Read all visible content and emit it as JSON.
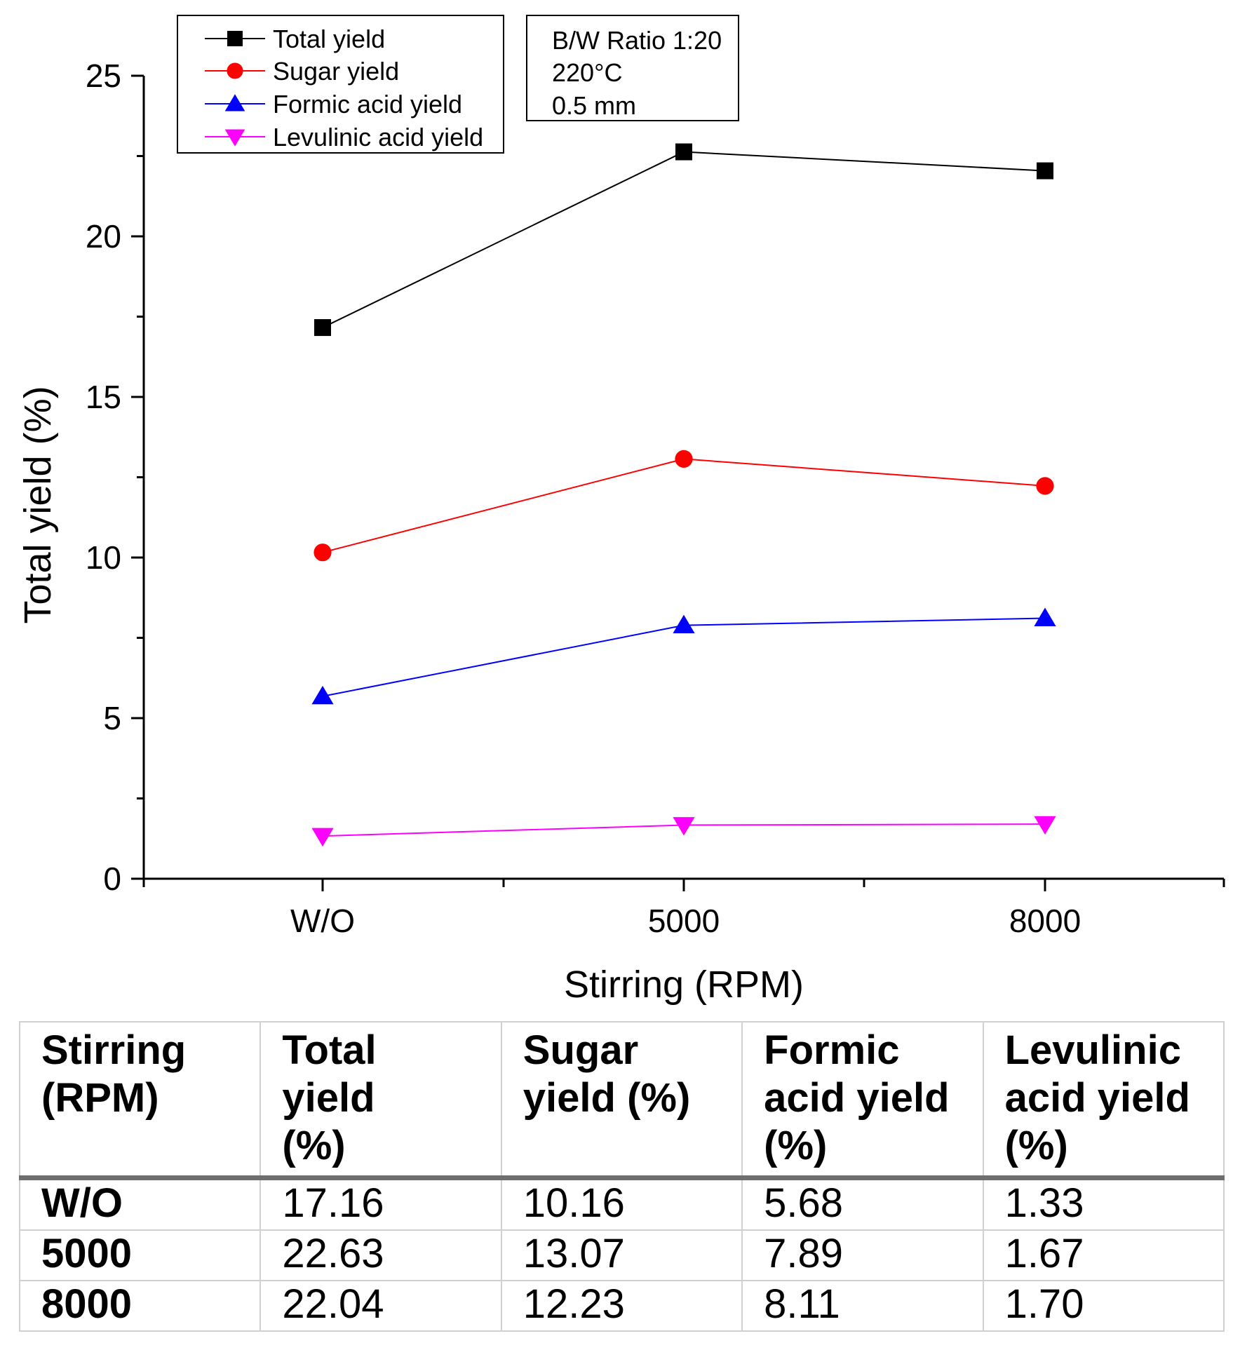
{
  "chart_data": {
    "type": "line",
    "xlabel": "Stirring (RPM)",
    "ylabel": "Total yield (%)",
    "categories": [
      "W/O",
      "5000",
      "8000"
    ],
    "ylim": [
      0,
      25
    ],
    "yticks": [
      "0",
      "5",
      "10",
      "15",
      "20",
      "25"
    ],
    "series": [
      {
        "name": "Total yield",
        "values": [
          17.16,
          22.63,
          22.04
        ],
        "color": "#000000",
        "marker": "square"
      },
      {
        "name": "Sugar yield",
        "values": [
          10.16,
          13.07,
          12.23
        ],
        "color": "#ff0000",
        "marker": "circle"
      },
      {
        "name": "Formic acid yield",
        "values": [
          5.68,
          7.89,
          8.11
        ],
        "color": "#0000ff",
        "marker": "triangle-up"
      },
      {
        "name": "Levulinic acid yield",
        "values": [
          1.33,
          1.67,
          1.7
        ],
        "color": "#ff00ff",
        "marker": "triangle-down"
      }
    ],
    "legend_position": "top-left",
    "annotation": [
      "B/W Ratio 1:20",
      "220°C",
      "0.5 mm"
    ]
  },
  "table": {
    "headers": [
      [
        "Stirring",
        "(RPM)"
      ],
      [
        "Total",
        "yield",
        "(%)"
      ],
      [
        "Sugar",
        "yield (%)"
      ],
      [
        "Formic",
        "acid yield",
        "(%)"
      ],
      [
        "Levulinic",
        "acid yield",
        "(%)"
      ]
    ],
    "rows": [
      [
        "W/O",
        "17.16",
        "10.16",
        "5.68",
        "1.33"
      ],
      [
        "5000",
        "22.63",
        "13.07",
        "7.89",
        "1.67"
      ],
      [
        "8000",
        "22.04",
        "12.23",
        "8.11",
        "1.70"
      ]
    ]
  }
}
